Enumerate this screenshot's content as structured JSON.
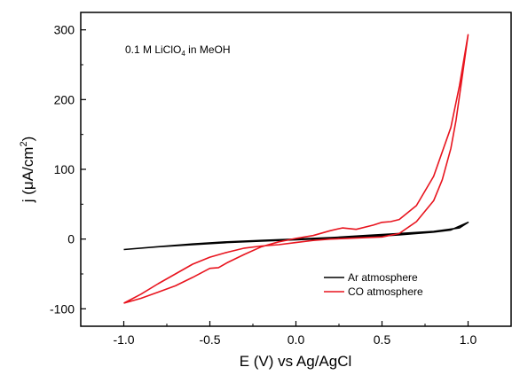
{
  "chart_data": {
    "type": "line",
    "xlabel": "E (V) vs Ag/AgCl",
    "ylabel_parts": {
      "main": "j (",
      "mu": "μ",
      "unit": "A/cm",
      "sup": "2",
      "close": ")"
    },
    "annotation_parts": {
      "main": "0.1 M LiClO",
      "sub": "4",
      "tail": " in MeOH"
    },
    "xlim": [
      -1.25,
      1.25
    ],
    "ylim": [
      -125,
      325
    ],
    "xticks": [
      -1.0,
      -0.5,
      0.0,
      0.5,
      1.0
    ],
    "xtick_labels": [
      "-1.0",
      "-0.5",
      "0.0",
      "0.5",
      "1.0"
    ],
    "yticks": [
      -100,
      0,
      100,
      200,
      300
    ],
    "ytick_labels": [
      "-100",
      "0",
      "100",
      "200",
      "300"
    ],
    "grid": false,
    "legend_position": "lower-right",
    "series": [
      {
        "name": "Ar atmosphere",
        "color": "#000000",
        "x": [
          -1.0,
          -0.8,
          -0.6,
          -0.4,
          -0.2,
          0.0,
          0.2,
          0.4,
          0.6,
          0.8,
          0.9,
          1.0,
          0.95,
          0.8,
          0.6,
          0.4,
          0.2,
          0.0,
          -0.2,
          -0.4,
          -0.6,
          -0.8,
          -1.0
        ],
        "y": [
          -15,
          -11,
          -8,
          -5,
          -3,
          -1,
          1,
          3,
          6,
          10,
          13,
          24,
          16,
          11,
          8,
          5,
          2,
          0,
          -2,
          -4,
          -7,
          -11,
          -15
        ]
      },
      {
        "name": "CO atmosphere",
        "color": "#e8141e",
        "x": [
          -1.0,
          -0.9,
          -0.8,
          -0.7,
          -0.6,
          -0.5,
          -0.45,
          -0.4,
          -0.3,
          -0.2,
          -0.1,
          0.0,
          0.1,
          0.2,
          0.27,
          0.35,
          0.45,
          0.5,
          0.55,
          0.6,
          0.7,
          0.8,
          0.9,
          0.95,
          1.0,
          0.97,
          0.93,
          0.9,
          0.85,
          0.8,
          0.7,
          0.6,
          0.5,
          0.4,
          0.3,
          0.2,
          0.1,
          0.0,
          -0.1,
          -0.2,
          -0.3,
          -0.4,
          -0.5,
          -0.6,
          -0.7,
          -0.8,
          -0.9,
          -1.0
        ],
        "y": [
          -92,
          -85,
          -76,
          -67,
          -55,
          -42,
          -41,
          -34,
          -22,
          -11,
          -4,
          1,
          5,
          12,
          16,
          14,
          20,
          24,
          25,
          28,
          48,
          90,
          160,
          220,
          293,
          240,
          170,
          130,
          85,
          55,
          25,
          8,
          3,
          2,
          1,
          0,
          -2,
          -5,
          -8,
          -10,
          -13,
          -19,
          -26,
          -36,
          -50,
          -64,
          -79,
          -92
        ]
      }
    ]
  }
}
